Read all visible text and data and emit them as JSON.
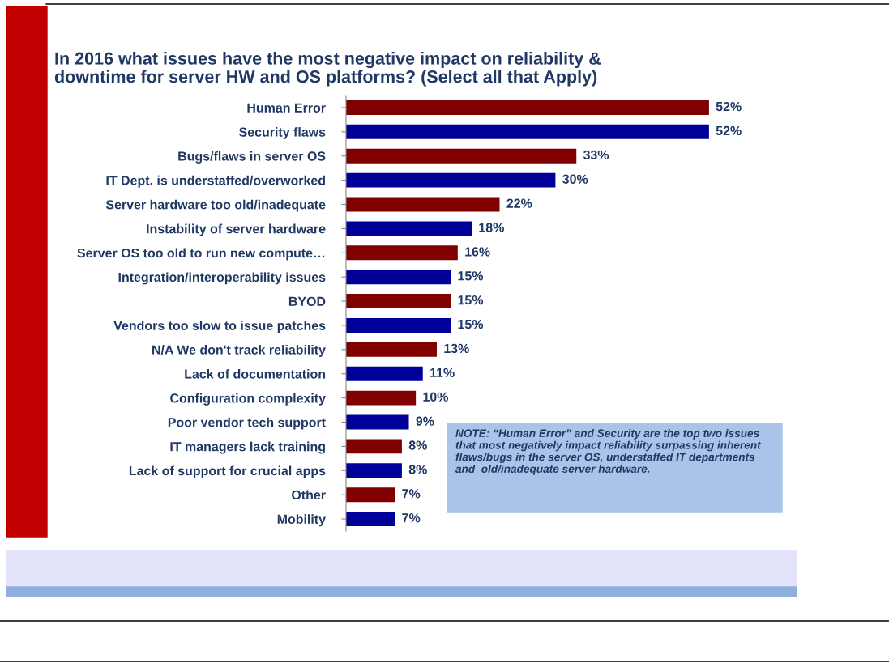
{
  "chart_data": {
    "type": "bar",
    "orientation": "horizontal",
    "title": "In 2016 what issues have the most negative impact on reliability &\ndowntime for server HW and OS platforms? (Select all that Apply)",
    "categories": [
      "Human Error",
      "Security flaws",
      "Bugs/flaws in server OS",
      "IT Dept. is understaffed/overworked",
      "Server hardware too old/inadequate",
      "Instability of server hardware",
      "Server OS too old to run new compute…",
      "Integration/interoperability issues",
      "BYOD",
      "Vendors too slow to issue patches",
      "N/A We don't track reliability",
      "Lack of documentation",
      "Configuration complexity",
      "Poor vendor tech support",
      "IT managers lack training",
      "Lack of support for crucial apps",
      "Other",
      "Mobility"
    ],
    "values": [
      52,
      52,
      33,
      30,
      22,
      18,
      16,
      15,
      15,
      15,
      13,
      11,
      10,
      9,
      8,
      8,
      7,
      7
    ],
    "colors": [
      "#800000",
      "#000099",
      "#800000",
      "#000099",
      "#800000",
      "#000099",
      "#800000",
      "#000099",
      "#800000",
      "#000099",
      "#800000",
      "#000099",
      "#800000",
      "#000099",
      "#800000",
      "#000099",
      "#800000",
      "#000099"
    ],
    "value_labels": [
      "52%",
      "52%",
      "33%",
      "30%",
      "22%",
      "18%",
      "16%",
      "15%",
      "15%",
      "15%",
      "13%",
      "11%",
      "10%",
      "9%",
      "8%",
      "8%",
      "7%",
      "7%"
    ],
    "annotations": [
      "NOTE: “Human Error” and Security are the top two issues that most negatively impact reliability surpassing inherent flaws/bugs in the server OS, understaffed IT departments and  old/inadequate server hardware."
    ],
    "grid": false,
    "legend": false
  }
}
